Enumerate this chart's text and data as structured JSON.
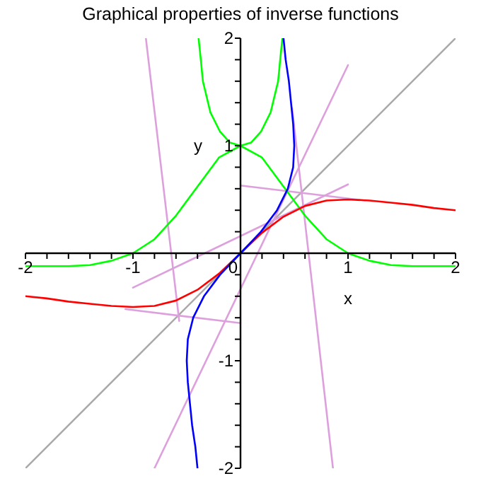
{
  "chart_data": {
    "type": "line",
    "title": "Graphical properties of inverse functions",
    "xlabel": "x",
    "ylabel": "y",
    "xlim": [
      -2,
      2
    ],
    "ylim": [
      -2,
      2
    ],
    "xticks": [
      -2,
      {
        "value": -1.8,
        "label": null
      },
      {
        "value": -1.6,
        "label": null
      },
      {
        "value": -1.4,
        "label": null
      },
      {
        "value": -1.2,
        "label": null
      },
      -1,
      {
        "value": -0.8,
        "label": null
      },
      {
        "value": -0.6,
        "label": null
      },
      {
        "value": -0.4,
        "label": null
      },
      {
        "value": -0.2,
        "label": null
      },
      0,
      {
        "value": 0.2,
        "label": null
      },
      {
        "value": 0.4,
        "label": null
      },
      {
        "value": 0.6,
        "label": null
      },
      {
        "value": 0.8,
        "label": null
      },
      1,
      {
        "value": 1.2,
        "label": null
      },
      {
        "value": 1.4,
        "label": null
      },
      {
        "value": 1.6,
        "label": null
      },
      {
        "value": 1.8,
        "label": null
      },
      2
    ],
    "yticks": [
      -2,
      {
        "value": -1.8,
        "label": null
      },
      {
        "value": -1.6,
        "label": null
      },
      {
        "value": -1.4,
        "label": null
      },
      {
        "value": -1.2,
        "label": null
      },
      -1,
      {
        "value": -0.8,
        "label": null
      },
      {
        "value": -0.6,
        "label": null
      },
      {
        "value": -0.4,
        "label": null
      },
      {
        "value": -0.2,
        "label": null
      },
      {
        "value": 0,
        "label": null
      },
      {
        "value": 0.2,
        "label": null
      },
      {
        "value": 0.4,
        "label": null
      },
      {
        "value": 0.6,
        "label": null
      },
      {
        "value": 0.8,
        "label": null
      },
      1,
      {
        "value": 1.2,
        "label": null
      },
      {
        "value": 1.4,
        "label": null
      },
      {
        "value": 1.6,
        "label": null
      },
      {
        "value": 1.8,
        "label": null
      },
      2
    ],
    "grid": false,
    "marker": "none",
    "line_style": "solid",
    "series": [
      {
        "color": "#aaaaaa",
        "x": [
          -2,
          2
        ],
        "values": [
          -2,
          2
        ]
      },
      {
        "color": "#dda0dd",
        "x": [
          -1,
          1
        ],
        "values": [
          -0.32,
          0.64
        ]
      },
      {
        "color": "#dda0dd",
        "x": [
          -0.8,
          1
        ],
        "values": [
          -2,
          1.75
        ]
      },
      {
        "color": "#dda0dd",
        "x": [
          0,
          1.16
        ],
        "values": [
          0.63,
          0.49
        ]
      },
      {
        "color": "#dda0dd",
        "x": [
          -1.07,
          0
        ],
        "values": [
          -0.52,
          -0.65
        ]
      },
      {
        "color": "#dda0dd",
        "x": [
          -0.88,
          -0.57
        ],
        "values": [
          2,
          -0.63
        ]
      },
      {
        "color": "#dda0dd",
        "x": [
          0.48,
          0.86
        ],
        "values": [
          1.35,
          -2
        ]
      },
      {
        "color": "#00ff00",
        "x": [
          -2,
          -1.8,
          -1.6,
          -1.4,
          -1.2,
          -1,
          -0.8,
          -0.6,
          -0.4,
          -0.2,
          0,
          0.2,
          0.4,
          0.6,
          0.8,
          1,
          1.2,
          1.4,
          1.6,
          1.8,
          2
        ],
        "values": [
          -0.12,
          -0.12,
          -0.12,
          -0.11,
          -0.07,
          0,
          0.13,
          0.35,
          0.62,
          0.89,
          1,
          0.89,
          0.62,
          0.35,
          0.13,
          0,
          -0.07,
          -0.11,
          -0.12,
          -0.12,
          -0.12
        ]
      },
      {
        "color": "#00ff00",
        "x": [
          -0.39,
          -0.37,
          -0.35,
          -0.28,
          -0.19,
          -0.1,
          0,
          0.1,
          0.19,
          0.28,
          0.35,
          0.37,
          0.39
        ],
        "values": [
          2,
          1.81,
          1.6,
          1.31,
          1.13,
          1.03,
          1,
          1.03,
          1.13,
          1.31,
          1.6,
          1.81,
          2
        ]
      },
      {
        "color": "#ff0000",
        "x": [
          -2,
          -1.8,
          -1.6,
          -1.4,
          -1.2,
          -1,
          -0.8,
          -0.6,
          -0.4,
          -0.2,
          0,
          0.2,
          0.4,
          0.6,
          0.8,
          1,
          1.2,
          1.4,
          1.6,
          1.8,
          2
        ],
        "values": [
          -0.4,
          -0.42,
          -0.45,
          -0.47,
          -0.49,
          -0.5,
          -0.49,
          -0.44,
          -0.34,
          -0.19,
          0,
          0.19,
          0.34,
          0.44,
          0.49,
          0.5,
          0.49,
          0.47,
          0.45,
          0.42,
          0.4
        ]
      },
      {
        "color": "#0000ff",
        "x": [
          -0.4,
          -0.42,
          -0.45,
          -0.47,
          -0.49,
          -0.5,
          -0.49,
          -0.44,
          -0.34,
          -0.19,
          0,
          0.19,
          0.34,
          0.44,
          0.49,
          0.5,
          0.49,
          0.47,
          0.45,
          0.42,
          0.4
        ],
        "values": [
          -2,
          -1.8,
          -1.6,
          -1.4,
          -1.2,
          -1,
          -0.8,
          -0.6,
          -0.4,
          -0.2,
          0,
          0.2,
          0.4,
          0.6,
          0.8,
          1,
          1.2,
          1.4,
          1.6,
          1.8,
          2
        ]
      }
    ]
  }
}
